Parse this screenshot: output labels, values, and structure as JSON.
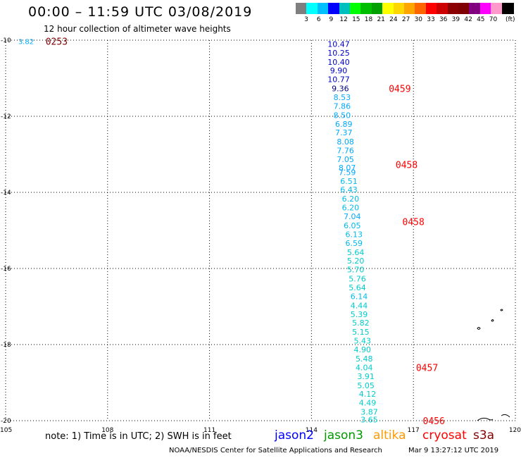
{
  "header": {
    "title": "00:00 – 11:59 UTC 03/08/2019",
    "subtitle": "12 hour collection of altimeter wave heights"
  },
  "legend": {
    "colors": [
      "#7f7f7f",
      "#00ffff",
      "#00bfff",
      "#0000ff",
      "#00bfbf",
      "#00ff00",
      "#00bf00",
      "#00a000",
      "#ffff00",
      "#ffd700",
      "#ffa500",
      "#ff6600",
      "#ff0000",
      "#cc0000",
      "#8b0000",
      "#7f0000",
      "#800080",
      "#ff00ff",
      "#ff99cc",
      "#000000"
    ],
    "labels": [
      "3",
      "6",
      "9",
      "12",
      "15",
      "18",
      "21",
      "24",
      "27",
      "30",
      "33",
      "36",
      "39",
      "42",
      "45",
      "70"
    ],
    "unit": "(ft)"
  },
  "axes": {
    "y_labels": [
      "-10",
      "-12",
      "-14",
      "-16",
      "-18",
      "-20"
    ],
    "x_labels": [
      "105",
      "108",
      "111",
      "114",
      "117",
      "120"
    ]
  },
  "chart_data": {
    "type": "scatter",
    "x_range": [
      105,
      120
    ],
    "y_range": [
      -10,
      -20
    ],
    "track": [
      {
        "lon": 114.8,
        "lat": -10.1,
        "value": "10.47",
        "color": "#0000cc"
      },
      {
        "lon": 114.8,
        "lat": -10.33,
        "value": "10.25",
        "color": "#0000cc"
      },
      {
        "lon": 114.8,
        "lat": -10.57,
        "value": "10.40",
        "color": "#0000cc"
      },
      {
        "lon": 114.8,
        "lat": -10.8,
        "value": "9.90",
        "color": "#0000cc"
      },
      {
        "lon": 114.8,
        "lat": -11.03,
        "value": "10.77",
        "color": "#0000cc"
      },
      {
        "lon": 114.85,
        "lat": -11.27,
        "value": "9.36",
        "color": "#000080"
      },
      {
        "lon": 114.9,
        "lat": -11.5,
        "value": "8.53",
        "color": "#00aaff"
      },
      {
        "lon": 114.9,
        "lat": -11.73,
        "value": "7.86",
        "color": "#00aaff"
      },
      {
        "lon": 114.9,
        "lat": -11.97,
        "value": "8.50",
        "color": "#00aaff"
      },
      {
        "lon": 114.95,
        "lat": -12.2,
        "value": "6.89",
        "color": "#00aaff"
      },
      {
        "lon": 114.95,
        "lat": -12.43,
        "value": "7.37",
        "color": "#00aaff"
      },
      {
        "lon": 115.0,
        "lat": -12.67,
        "value": "8.08",
        "color": "#00aaff"
      },
      {
        "lon": 115.0,
        "lat": -12.9,
        "value": "7.76",
        "color": "#00aaff"
      },
      {
        "lon": 115.0,
        "lat": -13.13,
        "value": "7.05",
        "color": "#00aaff"
      },
      {
        "lon": 115.05,
        "lat": -13.35,
        "value": "8.07",
        "color": "#00aaff"
      },
      {
        "lon": 115.05,
        "lat": -13.47,
        "value": "7.59",
        "color": "#00aaff"
      },
      {
        "lon": 115.1,
        "lat": -13.7,
        "value": "6.51",
        "color": "#00bbee"
      },
      {
        "lon": 115.1,
        "lat": -13.93,
        "value": "6.43",
        "color": "#00bbee"
      },
      {
        "lon": 115.15,
        "lat": -14.17,
        "value": "6.20",
        "color": "#00bbee"
      },
      {
        "lon": 115.15,
        "lat": -14.4,
        "value": "6.20",
        "color": "#00bbee"
      },
      {
        "lon": 115.2,
        "lat": -14.63,
        "value": "7.04",
        "color": "#00aaff"
      },
      {
        "lon": 115.2,
        "lat": -14.87,
        "value": "6.05",
        "color": "#00bbee"
      },
      {
        "lon": 115.25,
        "lat": -15.1,
        "value": "6.13",
        "color": "#00bbee"
      },
      {
        "lon": 115.25,
        "lat": -15.33,
        "value": "6.59",
        "color": "#00bbee"
      },
      {
        "lon": 115.3,
        "lat": -15.57,
        "value": "5.64",
        "color": "#00cccc"
      },
      {
        "lon": 115.3,
        "lat": -15.8,
        "value": "5.20",
        "color": "#00cccc"
      },
      {
        "lon": 115.3,
        "lat": -16.03,
        "value": "5.70",
        "color": "#00cccc"
      },
      {
        "lon": 115.35,
        "lat": -16.27,
        "value": "5.76",
        "color": "#00cccc"
      },
      {
        "lon": 115.35,
        "lat": -16.5,
        "value": "5.64",
        "color": "#00cccc"
      },
      {
        "lon": 115.4,
        "lat": -16.73,
        "value": "6.14",
        "color": "#00bbee"
      },
      {
        "lon": 115.4,
        "lat": -16.97,
        "value": "4.44",
        "color": "#00cccc"
      },
      {
        "lon": 115.4,
        "lat": -17.2,
        "value": "5.39",
        "color": "#00cccc"
      },
      {
        "lon": 115.45,
        "lat": -17.43,
        "value": "5.82",
        "color": "#00cccc"
      },
      {
        "lon": 115.45,
        "lat": -17.67,
        "value": "5.15",
        "color": "#00cccc"
      },
      {
        "lon": 115.5,
        "lat": -17.9,
        "value": "5.43",
        "color": "#00cccc"
      },
      {
        "lon": 115.5,
        "lat": -18.13,
        "value": "4.90",
        "color": "#00cccc"
      },
      {
        "lon": 115.55,
        "lat": -18.37,
        "value": "5.48",
        "color": "#00cccc"
      },
      {
        "lon": 115.55,
        "lat": -18.6,
        "value": "4.04",
        "color": "#00cccc"
      },
      {
        "lon": 115.6,
        "lat": -18.83,
        "value": "3.91",
        "color": "#00cccc"
      },
      {
        "lon": 115.6,
        "lat": -19.07,
        "value": "5.05",
        "color": "#00cccc"
      },
      {
        "lon": 115.65,
        "lat": -19.3,
        "value": "4.12",
        "color": "#00cccc"
      },
      {
        "lon": 115.65,
        "lat": -19.53,
        "value": "4.49",
        "color": "#00cccc"
      },
      {
        "lon": 115.7,
        "lat": -19.77,
        "value": "3.87",
        "color": "#00cccc"
      },
      {
        "lon": 115.7,
        "lat": -19.97,
        "value": "3.65",
        "color": "#00cccc"
      }
    ],
    "corner_value": {
      "lon": 105.6,
      "lat": -10.03,
      "value": "3.82",
      "color": "#00aaff"
    },
    "time_labels": [
      {
        "lon": 106.5,
        "lat": -10.03,
        "value": "0253",
        "color": "#800000"
      },
      {
        "lon": 116.6,
        "lat": -11.27,
        "value": "0459",
        "color": "#ff0000"
      },
      {
        "lon": 116.8,
        "lat": -13.27,
        "value": "0458",
        "color": "#ff0000"
      },
      {
        "lon": 117.0,
        "lat": -14.77,
        "value": "0458",
        "color": "#ff0000"
      },
      {
        "lon": 117.4,
        "lat": -18.6,
        "value": "0457",
        "color": "#ff0000"
      },
      {
        "lon": 117.6,
        "lat": -20.0,
        "value": "0456",
        "color": "#ff0000"
      }
    ]
  },
  "footer": {
    "note": "note:  1) Time is in UTC;  2) SWH is in feet",
    "satellites": [
      {
        "name": "jason2",
        "color": "#0000ff"
      },
      {
        "name": "jason3",
        "color": "#009900"
      },
      {
        "name": "altika",
        "color": "#ff9900"
      },
      {
        "name": "cryosat",
        "color": "#ff0000"
      },
      {
        "name": "s3a",
        "color": "#800000"
      }
    ],
    "credit": "NOAA/NESDIS Center for Satellite Applications and Research",
    "timestamp": "Mar  9 13:27:12 UTC 2019"
  }
}
